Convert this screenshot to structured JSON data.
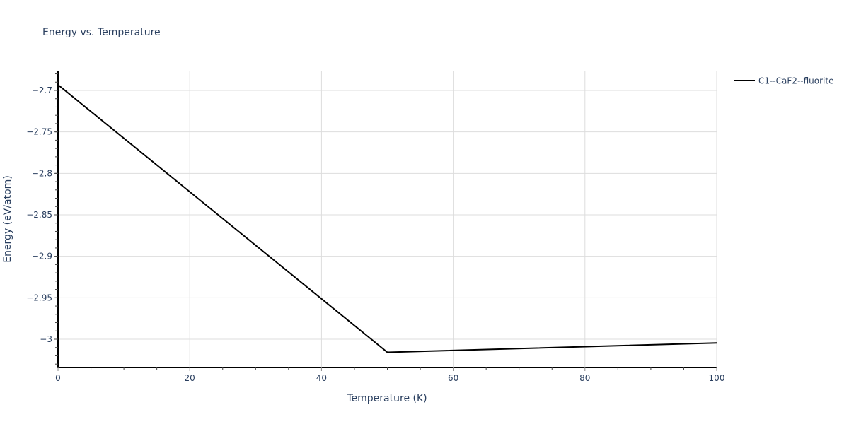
{
  "chart_data": {
    "type": "line",
    "title": "Energy vs. Temperature",
    "xlabel": "Temperature (K)",
    "ylabel": "Energy (eV/atom)",
    "xlim": [
      0,
      100
    ],
    "ylim": [
      -3.033,
      -2.677
    ],
    "x_ticks": [
      0,
      20,
      40,
      60,
      80,
      100
    ],
    "x_tick_labels": [
      "0",
      "20",
      "40",
      "60",
      "80",
      "100"
    ],
    "y_ticks": [
      -2.7,
      -2.75,
      -2.8,
      -2.85,
      -2.9,
      -2.95,
      -3.0
    ],
    "y_tick_labels": [
      "−2.7",
      "−2.75",
      "−2.8",
      "−2.85",
      "−2.9",
      "−2.95",
      "−3"
    ],
    "grid": true,
    "legend_position": "top-right-outside",
    "series": [
      {
        "name": "C1--CaF2--fluorite",
        "color": "#000000",
        "x": [
          0,
          50,
          100
        ],
        "y": [
          -2.6932,
          -3.0158,
          -3.0044
        ]
      }
    ]
  },
  "colors": {
    "text": "#2a3f5f",
    "grid": "#dddddd",
    "axis_line": "#000000",
    "background": "#ffffff"
  }
}
